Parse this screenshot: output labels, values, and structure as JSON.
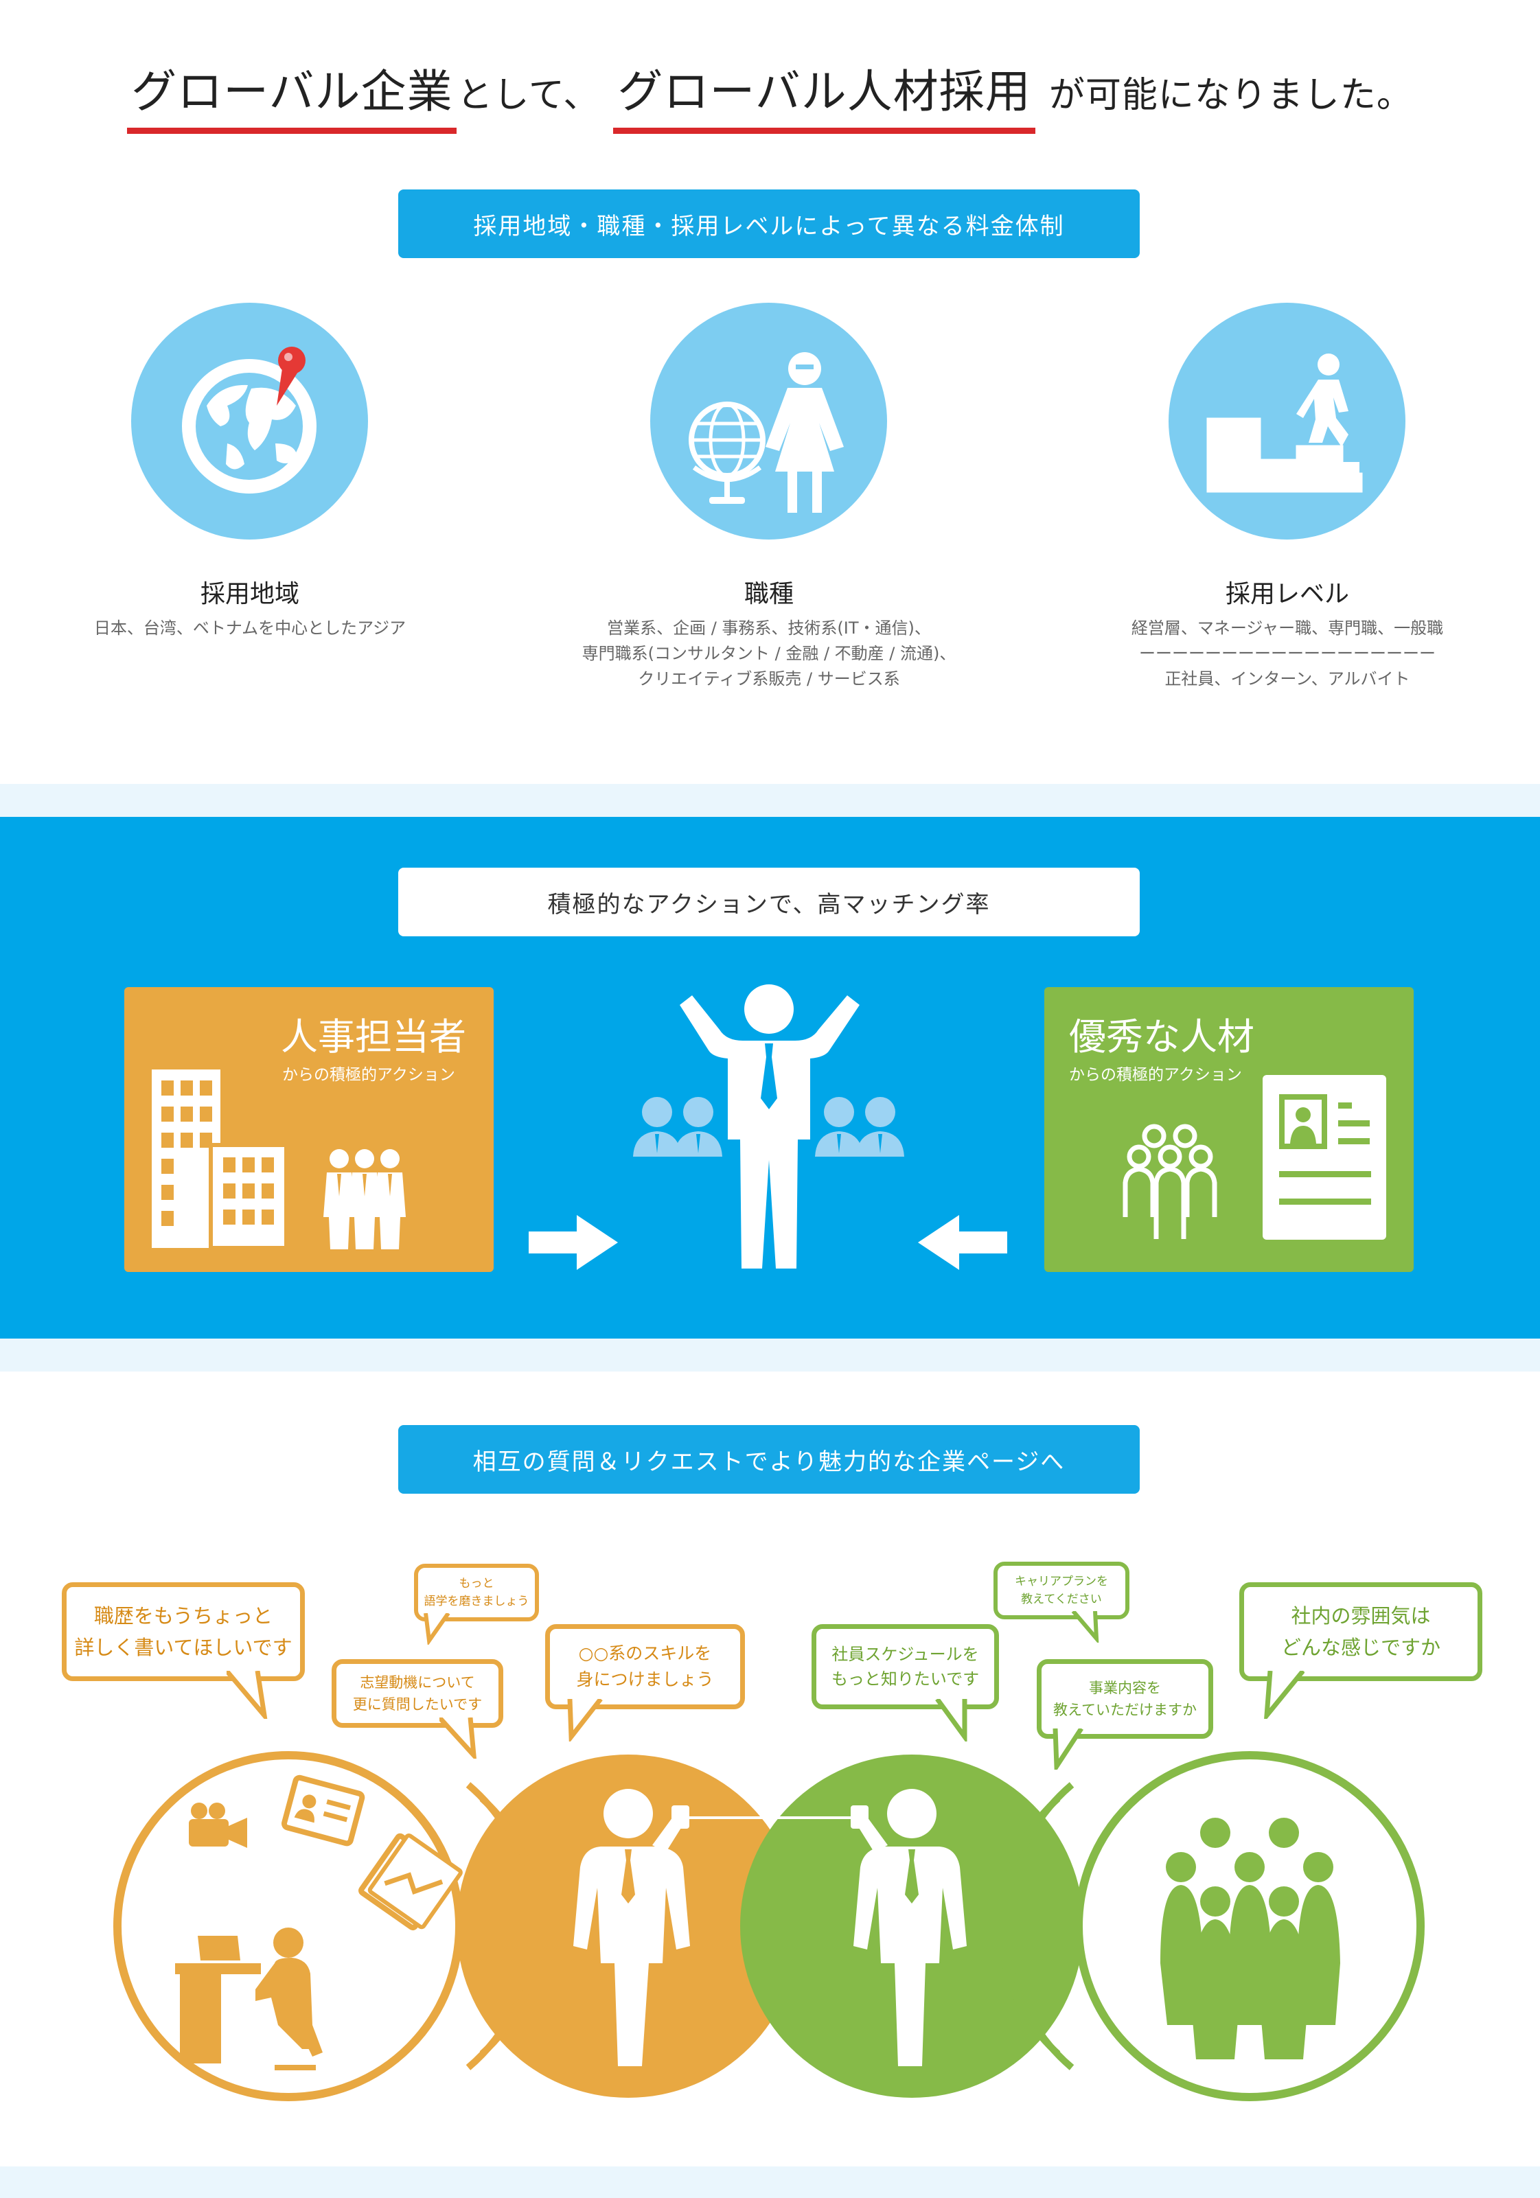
{
  "title": {
    "part1": "グローバル企業",
    "part2": "として、",
    "part3": "グローバル人材採用",
    "part4": "が可能になりました。",
    "underline_color": "#d9282b"
  },
  "section1": {
    "banner": "採用地域・職種・採用レベルによって異なる料金体制",
    "columns": [
      {
        "icon": "globe-pin-icon",
        "title": "採用地域",
        "lines": [
          "日本、台湾、ベトナムを中心としたアジア"
        ]
      },
      {
        "icon": "teacher-globe-icon",
        "title": "職種",
        "lines": [
          "営業系、企画 / 事務系、技術系(IT・通信)、",
          "専門職系(コンサルタント / 金融 / 不動産 / 流通)、",
          "クリエイティブ系販売 / サービス系"
        ]
      },
      {
        "icon": "stairs-climb-icon",
        "title": "採用レベル",
        "lines": [
          "経営層、マネージャー職、専門職、一般職",
          "ーーーーーーーーーーーーーーーーーー",
          "正社員、インターン、アルバイト"
        ]
      }
    ]
  },
  "section2": {
    "banner": "積極的なアクションで、高マッチング率",
    "left_card": {
      "title": "人事担当者",
      "subtitle": "からの積極的アクション",
      "color": "#e8a842"
    },
    "right_card": {
      "title": "優秀な人材",
      "subtitle": "からの積極的アクション",
      "color": "#86ba48"
    },
    "band_color": "#00a6e8"
  },
  "section3": {
    "banner": "相互の質問＆リクエストでより魅力的な企業ページへ",
    "bubbles_orange": [
      {
        "l1": "職歴をもうちょっと",
        "l2": "詳しく書いてほしいです"
      },
      {
        "l1": "もっと",
        "l2": "語学を磨きましょう"
      },
      {
        "l1": "志望動機について",
        "l2": "更に質問したいです"
      },
      {
        "l1": "○○系のスキルを",
        "l2": "身につけましょう"
      }
    ],
    "bubbles_green": [
      {
        "l1": "キャリアプランを",
        "l2": "教えてください"
      },
      {
        "l1": "社員スケジュールを",
        "l2": "もっと知りたいです"
      },
      {
        "l1": "事業内容を",
        "l2": "教えていただけますか"
      },
      {
        "l1": "社内の雰囲気は",
        "l2": "どんな感じですか"
      }
    ],
    "colors": {
      "orange": "#e8a842",
      "green": "#86ba48"
    }
  }
}
